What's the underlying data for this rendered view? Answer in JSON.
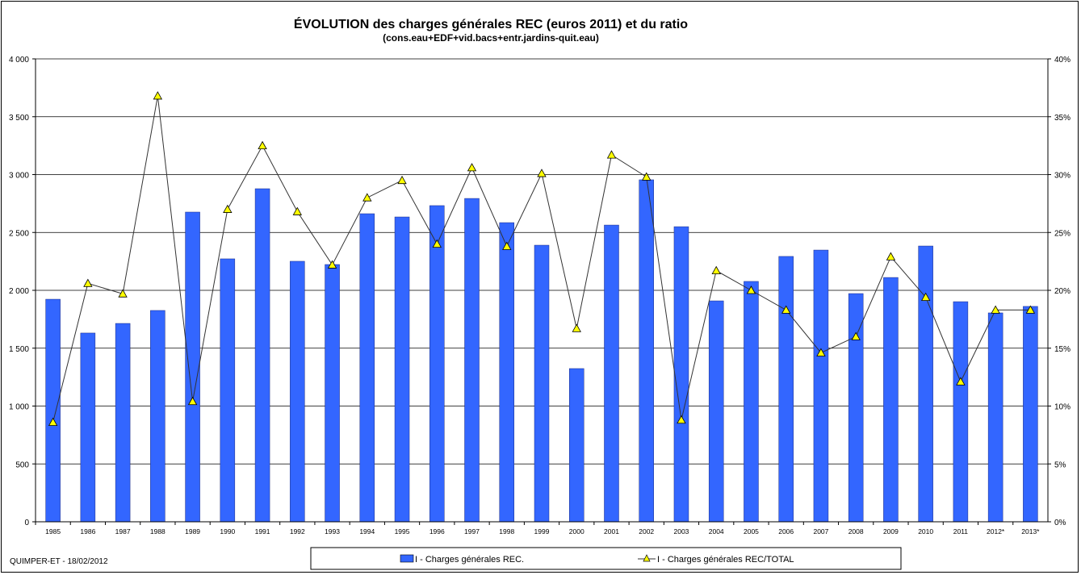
{
  "chart_data": {
    "type": "bar",
    "title": "ÉVOLUTION  des charges générales REC (euros 2011) et du ratio",
    "subtitle": "(cons.eau+EDF+vid.bacs+entr.jardins-quit.eau)",
    "footer": "QUIMPER-ET - 18/02/2012",
    "categories": [
      "1985",
      "1986",
      "1987",
      "1988",
      "1989",
      "1990",
      "1991",
      "1992",
      "1993",
      "1994",
      "1995",
      "1996",
      "1997",
      "1998",
      "1999",
      "2000",
      "2001",
      "2002",
      "2003",
      "2004",
      "2005",
      "2006",
      "2007",
      "2008",
      "2009",
      "2010",
      "2011",
      "2012*",
      "2013*"
    ],
    "ylim": [
      0,
      4000
    ],
    "yticks": [
      "0",
      "500",
      "1 000",
      "1 500",
      "2 000",
      "2 500",
      "3 000",
      "3 500",
      "4 000"
    ],
    "y2lim": [
      0,
      40
    ],
    "y2ticks": [
      "0%",
      "5%",
      "10%",
      "15%",
      "20%",
      "25%",
      "30%",
      "35%",
      "40%"
    ],
    "grid": true,
    "legend_position": "bottom",
    "series": [
      {
        "name": "I - Charges générales REC.",
        "type": "bar",
        "axis": "left",
        "color": "#3366FF",
        "values": [
          1923,
          1631,
          1714,
          1826,
          2676,
          2272,
          2878,
          2251,
          2223,
          2662,
          2634,
          2732,
          2794,
          2585,
          2390,
          1324,
          2564,
          2955,
          2550,
          1909,
          2077,
          2293,
          2348,
          1972,
          2111,
          2383,
          1902,
          1805,
          1861
        ]
      },
      {
        "name": "I - Charges générales REC/TOTAL",
        "type": "line",
        "axis": "right",
        "unit": "%",
        "color": "#333333",
        "marker_color": "#FFFF00",
        "values": [
          8.6,
          20.6,
          19.7,
          36.8,
          10.4,
          27.0,
          32.5,
          26.8,
          22.2,
          28.0,
          29.5,
          24.0,
          30.6,
          23.8,
          30.1,
          16.7,
          31.7,
          29.8,
          8.8,
          21.7,
          20.0,
          18.3,
          14.6,
          16.0,
          22.9,
          19.4,
          12.1,
          18.3,
          18.3
        ]
      }
    ]
  }
}
